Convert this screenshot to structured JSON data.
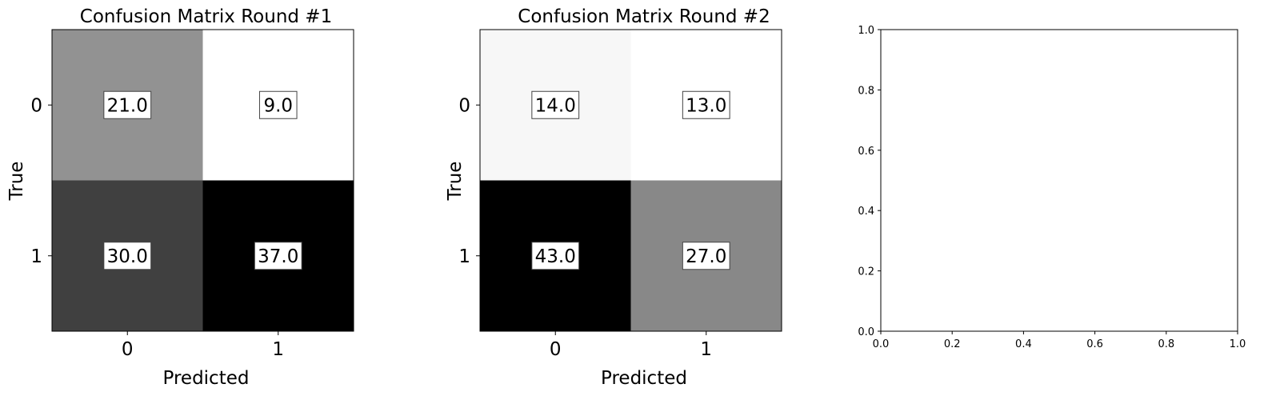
{
  "chart_data": [
    {
      "type": "heatmap",
      "title": "Confusion Matrix Round #1",
      "xlabel": "Predicted",
      "ylabel": "True",
      "x_ticks": [
        "0",
        "1"
      ],
      "y_ticks": [
        "0",
        "1"
      ],
      "values": [
        [
          21.0,
          9.0
        ],
        [
          30.0,
          37.0
        ]
      ],
      "value_labels": [
        [
          "21.0",
          "9.0"
        ],
        [
          "30.0",
          "37.0"
        ]
      ],
      "colormap": "Greys",
      "color_range": [
        9.0,
        37.0
      ]
    },
    {
      "type": "heatmap",
      "title": "Confusion Matrix Round #2",
      "xlabel": "Predicted",
      "ylabel": "True",
      "x_ticks": [
        "0",
        "1"
      ],
      "y_ticks": [
        "0",
        "1"
      ],
      "values": [
        [
          14.0,
          13.0
        ],
        [
          43.0,
          27.0
        ]
      ],
      "value_labels": [
        [
          "14.0",
          "13.0"
        ],
        [
          "43.0",
          "27.0"
        ]
      ],
      "colormap": "Greys",
      "color_range": [
        13.0,
        43.0
      ]
    },
    {
      "type": "empty",
      "title": "",
      "xlabel": "",
      "ylabel": "",
      "xlim": [
        0.0,
        1.0
      ],
      "ylim": [
        0.0,
        1.0
      ],
      "x_ticks": [
        "0.0",
        "0.2",
        "0.4",
        "0.6",
        "0.8",
        "1.0"
      ],
      "y_ticks": [
        "0.0",
        "0.2",
        "0.4",
        "0.6",
        "0.8",
        "1.0"
      ]
    }
  ]
}
